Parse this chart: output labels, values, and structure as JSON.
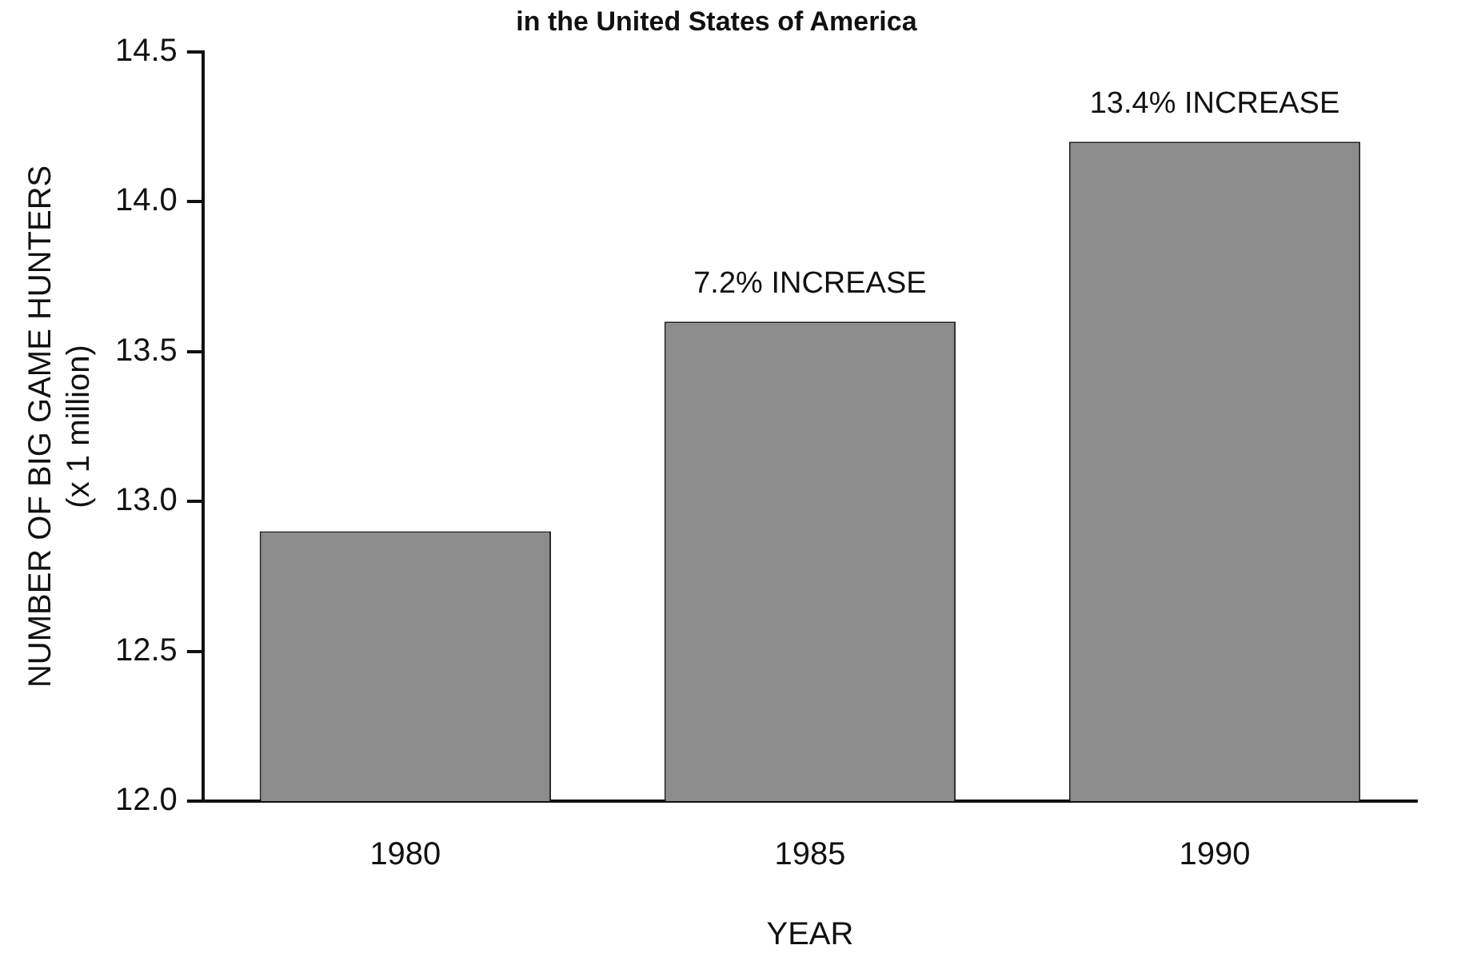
{
  "chart_data": {
    "type": "bar",
    "title": "in the United States of America",
    "xlabel": "YEAR",
    "ylabel": "NUMBER OF BIG GAME HUNTERS\n(x 1 million)",
    "categories": [
      "1980",
      "1985",
      "1990"
    ],
    "values": [
      12.9,
      13.6,
      14.2
    ],
    "color": "#8c8c8c",
    "ylim": [
      12,
      14.5
    ],
    "yticks": [
      {
        "value": 12,
        "label": "12.0"
      },
      {
        "value": 12.5,
        "label": "12.5"
      },
      {
        "value": 13,
        "label": "13.0"
      },
      {
        "value": 13.5,
        "label": "13.5"
      },
      {
        "value": 14,
        "label": "14.0"
      },
      {
        "value": 14.5,
        "label": "14.5"
      }
    ],
    "grid": false,
    "legend": false,
    "annotations": [
      {
        "text": "7.2% INCREASE",
        "x": "1985",
        "y": 13.6
      },
      {
        "text": "13.4% INCREASE",
        "x": "1990",
        "y": 14.2
      }
    ]
  }
}
